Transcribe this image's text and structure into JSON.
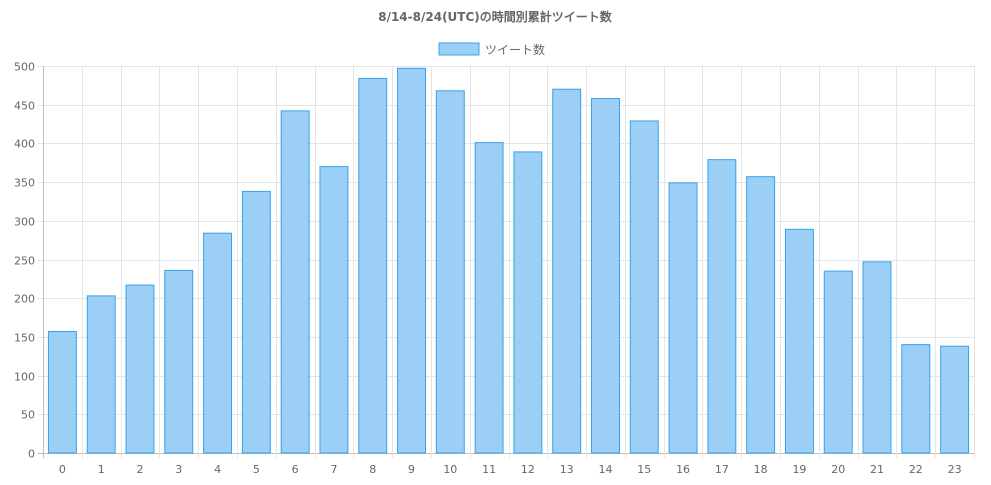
{
  "chart_data": {
    "type": "bar",
    "title": "8/14-8/24(UTC)の時間別累計ツイート数",
    "xlabel": "",
    "ylabel": "",
    "categories": [
      "0",
      "1",
      "2",
      "3",
      "4",
      "5",
      "6",
      "7",
      "8",
      "9",
      "10",
      "11",
      "12",
      "13",
      "14",
      "15",
      "16",
      "17",
      "18",
      "19",
      "20",
      "21",
      "22",
      "23"
    ],
    "series": [
      {
        "name": "ツイート数",
        "values": [
          157,
          203,
          217,
          236,
          284,
          338,
          442,
          370,
          484,
          497,
          468,
          401,
          389,
          470,
          458,
          429,
          349,
          379,
          357,
          289,
          235,
          247,
          140,
          138
        ],
        "fill_color": "#9ccff5",
        "border_color": "#36a2eb"
      }
    ],
    "ylim": [
      0,
      500
    ],
    "yticks": [
      0,
      50,
      100,
      150,
      200,
      250,
      300,
      350,
      400,
      450,
      500
    ],
    "grid": true,
    "legend_position": "top"
  }
}
